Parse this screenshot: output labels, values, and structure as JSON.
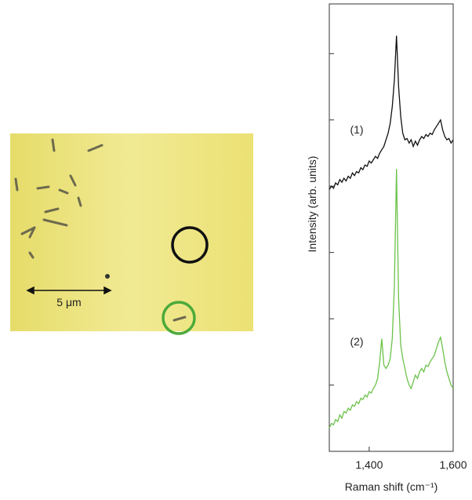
{
  "image": {
    "scale_label": "5 μm"
  },
  "chart_data": {
    "type": "line",
    "x_label": "Raman shift (cm⁻¹)",
    "y_label": "Intensity (arb. units)",
    "annotations": [
      "(1)",
      "(2)"
    ],
    "x": [
      1305,
      1310,
      1315,
      1320,
      1325,
      1330,
      1335,
      1340,
      1345,
      1350,
      1355,
      1360,
      1365,
      1370,
      1375,
      1380,
      1385,
      1390,
      1395,
      1400,
      1405,
      1410,
      1415,
      1420,
      1425,
      1430,
      1435,
      1440,
      1445,
      1450,
      1455,
      1460,
      1465,
      1470,
      1475,
      1480,
      1485,
      1490,
      1495,
      1500,
      1505,
      1510,
      1515,
      1520,
      1525,
      1530,
      1535,
      1540,
      1545,
      1550,
      1555,
      1560,
      1565,
      1570,
      1575,
      1580,
      1585,
      1590,
      1595,
      1600
    ],
    "series": [
      {
        "color": "#111111",
        "values": [
          3.95,
          4.0,
          3.97,
          4.05,
          4.02,
          4.1,
          4.06,
          4.12,
          4.08,
          4.15,
          4.12,
          4.2,
          4.16,
          4.22,
          4.2,
          4.28,
          4.25,
          4.32,
          4.3,
          4.38,
          4.35,
          4.4,
          4.45,
          4.42,
          4.5,
          4.55,
          4.6,
          4.7,
          4.8,
          4.95,
          5.2,
          5.6,
          6.27,
          5.5,
          5.05,
          4.8,
          4.7,
          4.72,
          4.65,
          4.7,
          4.6,
          4.68,
          4.62,
          4.7,
          4.75,
          4.72,
          4.78,
          4.75,
          4.8,
          4.78,
          4.85,
          4.9,
          4.95,
          5.0,
          4.85,
          4.75,
          4.7,
          4.72,
          4.65,
          4.7
        ]
      },
      {
        "color": "#6cc24a",
        "values": [
          0.35,
          0.42,
          0.4,
          0.48,
          0.45,
          0.55,
          0.5,
          0.6,
          0.58,
          0.65,
          0.62,
          0.7,
          0.68,
          0.75,
          0.72,
          0.8,
          0.78,
          0.85,
          0.82,
          0.9,
          0.88,
          0.95,
          1.0,
          1.1,
          1.35,
          1.7,
          1.3,
          1.25,
          1.3,
          1.4,
          1.7,
          2.5,
          4.26,
          2.3,
          1.6,
          1.4,
          1.25,
          1.1,
          1.0,
          0.95,
          1.05,
          1.15,
          1.1,
          1.2,
          1.25,
          1.2,
          1.3,
          1.28,
          1.35,
          1.4,
          1.45,
          1.55,
          1.65,
          1.72,
          1.55,
          1.35,
          1.2,
          1.1,
          1.0,
          0.95
        ]
      }
    ],
    "xlim": [
      1305,
      1600
    ],
    "xticks": [
      {
        "value": 1400,
        "label": "1,400"
      },
      {
        "value": 1600,
        "label": "1,600"
      }
    ],
    "ylim": [
      0,
      6.75
    ],
    "yticks": [
      {
        "value": 1,
        "label": null
      },
      {
        "value": 2,
        "label": null
      },
      {
        "value": 3,
        "label": null
      },
      {
        "value": 4,
        "label": null
      },
      {
        "value": 5,
        "label": null
      },
      {
        "value": 6,
        "label": null
      }
    ]
  }
}
